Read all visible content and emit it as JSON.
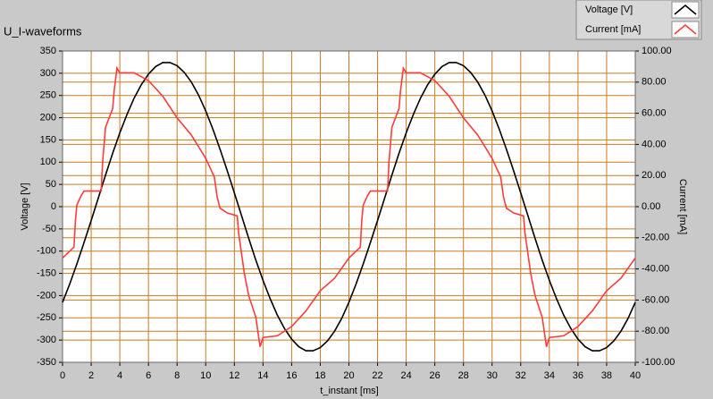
{
  "chart_data": {
    "type": "line",
    "title": "U_I-waveforms",
    "x_label": "t_instant [ms]",
    "y_label": "Voltage [V]",
    "y2_label": "Current [mA]",
    "xlim": [
      0,
      40
    ],
    "xticks": [
      0,
      2,
      4,
      6,
      8,
      10,
      12,
      14,
      16,
      18,
      20,
      22,
      24,
      26,
      28,
      30,
      32,
      34,
      36,
      38,
      40
    ],
    "ylim": [
      -350,
      350
    ],
    "yticks": [
      350,
      300,
      250,
      200,
      150,
      100,
      50,
      0,
      -50,
      -100,
      -150,
      -200,
      -250,
      -300,
      -350
    ],
    "y2lim": [
      -100,
      100
    ],
    "y2ticks": [
      {
        "value": 100,
        "label": "100.00"
      },
      {
        "value": 80,
        "label": "80.00"
      },
      {
        "value": 60,
        "label": "60.00"
      },
      {
        "value": 40,
        "label": "40.00"
      },
      {
        "value": 20,
        "label": "20.00"
      },
      {
        "value": 0,
        "label": "0.00"
      },
      {
        "value": -20,
        "label": "-20.00"
      },
      {
        "value": -40,
        "label": "-40.00"
      },
      {
        "value": -60,
        "label": "-60.00"
      },
      {
        "value": -80,
        "label": "-80.00"
      },
      {
        "value": -100,
        "label": "-100.00"
      }
    ],
    "grid": true,
    "grid_color": "#c87a1e",
    "legend": "top-right",
    "series": [
      {
        "name": "Voltage [V]",
        "color": "#000000",
        "x": [
          0,
          0.5,
          1,
          1.5,
          2,
          2.5,
          3,
          3.5,
          4,
          4.5,
          5,
          5.5,
          6,
          6.5,
          7,
          7.5,
          8,
          8.5,
          9,
          9.5,
          10,
          10.5,
          11,
          11.5,
          12,
          12.5,
          13,
          13.5,
          14,
          14.5,
          15,
          15.5,
          16,
          16.5,
          17,
          17.5,
          18,
          18.5,
          19,
          19.5,
          20,
          20.5,
          21,
          21.5,
          22,
          22.5,
          23,
          23.5,
          24,
          24.5,
          25,
          25.5,
          26,
          26.5,
          27,
          27.5,
          28,
          28.5,
          29,
          29.5,
          30,
          30.5,
          31,
          31.5,
          32,
          32.5,
          33,
          33.5,
          34,
          34.5,
          35,
          35.5,
          36,
          36.5,
          37,
          37.5,
          38,
          38.5,
          39,
          39.5,
          40
        ],
        "values": [
          -215,
          -174,
          -129,
          -81,
          -31,
          20,
          71,
          120,
          166,
          207,
          244,
          274,
          298,
          315,
          324,
          324,
          317,
          302,
          280,
          251,
          215,
          174,
          129,
          81,
          31,
          -20,
          -71,
          -120,
          -166,
          -207,
          -244,
          -274,
          -298,
          -315,
          -324,
          -324,
          -317,
          -302,
          -280,
          -251,
          -215,
          -174,
          -129,
          -81,
          -31,
          20,
          71,
          120,
          166,
          207,
          244,
          274,
          298,
          315,
          324,
          324,
          317,
          302,
          280,
          251,
          215,
          174,
          129,
          81,
          31,
          -20,
          -71,
          -120,
          -166,
          -207,
          -244,
          -274,
          -298,
          -315,
          -324,
          -324,
          -317,
          -302,
          -280,
          -251,
          -215
        ]
      },
      {
        "name": "Current [mA]",
        "color": "#ff3b3b",
        "axis": "y2",
        "x": [
          0,
          0.8,
          0.9,
          1,
          1.3,
          1.5,
          2.7,
          2.8,
          3,
          3.5,
          3.6,
          3.8,
          4,
          5,
          6,
          7,
          8,
          9,
          10,
          10.6,
          10.8,
          11,
          11.5,
          12.2,
          12.3,
          12.7,
          13,
          13.5,
          13.8,
          14,
          15,
          16,
          17,
          18,
          19,
          20,
          20.8,
          20.9,
          21,
          21.3,
          21.5,
          22.7,
          22.8,
          23,
          23.5,
          23.6,
          23.8,
          24,
          25,
          26,
          27,
          28,
          29,
          30,
          30.6,
          30.8,
          31,
          31.5,
          32.2,
          32.3,
          32.7,
          33,
          33.5,
          33.8,
          34,
          35,
          36,
          37,
          38,
          39,
          40
        ],
        "values": [
          -33,
          -26,
          -9,
          1,
          7,
          10,
          10,
          29,
          51,
          63,
          74,
          89,
          86,
          86,
          81,
          71,
          57,
          46,
          31,
          19,
          6,
          -1,
          -4,
          -6,
          -17,
          -43,
          -57,
          -71,
          -90,
          -84,
          -83,
          -77,
          -67,
          -54,
          -46,
          -33,
          -26,
          -9,
          1,
          7,
          10,
          10,
          29,
          51,
          63,
          74,
          89,
          86,
          86,
          81,
          71,
          57,
          46,
          31,
          19,
          6,
          -1,
          -4,
          -6,
          -17,
          -43,
          -57,
          -71,
          -90,
          -84,
          -83,
          -77,
          -67,
          -54,
          -46,
          -33
        ]
      }
    ]
  }
}
